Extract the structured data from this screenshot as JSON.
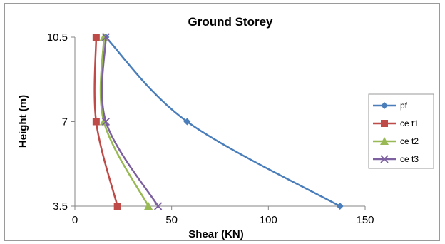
{
  "chart_data": {
    "type": "line",
    "title": "Ground Storey",
    "xlabel": "Shear (KN)",
    "ylabel": "Height (m)",
    "xlim": [
      0,
      150
    ],
    "xticks": [
      0,
      50,
      100,
      150
    ],
    "yticks": [
      3.5,
      7,
      10.5
    ],
    "ytick_labels": [
      "3.5",
      "7",
      "10.5"
    ],
    "grid": false,
    "legend_position": "right",
    "y": [
      3.5,
      7,
      10.5
    ],
    "series": [
      {
        "name": "pf",
        "color": "#4a7ebb",
        "marker": "diamond",
        "x": [
          137,
          58,
          16
        ]
      },
      {
        "name": "ce t1",
        "color": "#be4b48",
        "marker": "square",
        "x": [
          22,
          11,
          11
        ]
      },
      {
        "name": "ce t2",
        "color": "#98b954",
        "marker": "triangle",
        "x": [
          38,
          15,
          15
        ]
      },
      {
        "name": "ce t3",
        "color": "#7d60a0",
        "marker": "x",
        "x": [
          43,
          16,
          16
        ]
      }
    ]
  }
}
